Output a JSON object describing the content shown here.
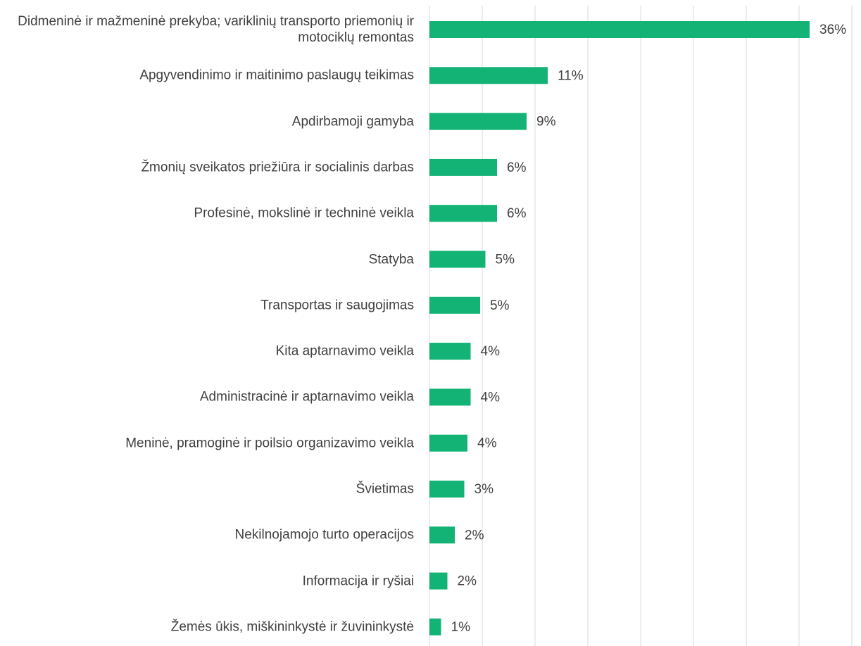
{
  "chart_data": {
    "type": "hbar",
    "categories": [
      "Didmeninė ir mažmeninė prekyba; variklinių transporto priemonių ir motociklų remontas",
      "Apgyvendinimo ir maitinimo paslaugų teikimas",
      "Apdirbamoji gamyba",
      "Žmonių sveikatos priežiūra ir socialinis darbas",
      "Profesinė, mokslinė ir techninė veikla",
      "Statyba",
      "Transportas ir saugojimas",
      "Kita aptarnavimo veikla",
      "Administracinė ir aptarnavimo veikla",
      "Meninė, pramoginė ir poilsio organizavimo veikla",
      "Švietimas",
      "Nekilnojamojo turto operacijos",
      "Informacija ir ryšiai",
      "Žemės ūkis, miškininkystė ir žuvininkystė"
    ],
    "values": [
      36.0,
      11.2,
      9.2,
      6.4,
      6.4,
      5.3,
      4.8,
      3.9,
      3.9,
      3.6,
      3.3,
      2.4,
      1.7,
      1.1
    ],
    "value_labels": [
      "36%",
      "11%",
      "9%",
      "6%",
      "6%",
      "5%",
      "5%",
      "4%",
      "4%",
      "4%",
      "3%",
      "2%",
      "2%",
      "1%"
    ],
    "color": "#12b374",
    "xlim": [
      0,
      40
    ],
    "xticks": [
      0,
      5,
      10,
      15,
      20,
      25,
      30,
      35,
      40
    ],
    "grid": true
  }
}
